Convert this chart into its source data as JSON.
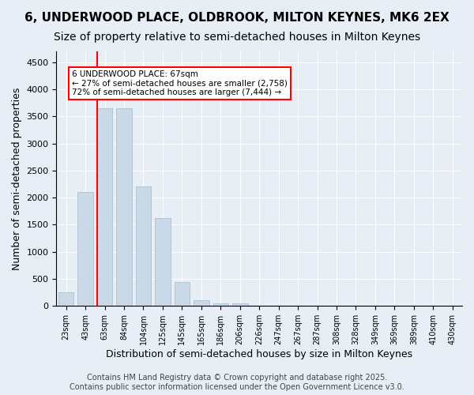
{
  "title1": "6, UNDERWOOD PLACE, OLDBROOK, MILTON KEYNES, MK6 2EX",
  "title2": "Size of property relative to semi-detached houses in Milton Keynes",
  "xlabel": "Distribution of semi-detached houses by size in Milton Keynes",
  "ylabel": "Number of semi-detached properties",
  "bins": [
    "23sqm",
    "43sqm",
    "63sqm",
    "84sqm",
    "104sqm",
    "125sqm",
    "145sqm",
    "165sqm",
    "186sqm",
    "206sqm",
    "226sqm",
    "247sqm",
    "267sqm",
    "287sqm",
    "308sqm",
    "328sqm",
    "349sqm",
    "369sqm",
    "389sqm",
    "410sqm",
    "430sqm"
  ],
  "values": [
    250,
    2100,
    3650,
    3650,
    2200,
    1620,
    440,
    100,
    50,
    50,
    0,
    0,
    0,
    0,
    0,
    0,
    0,
    0,
    0,
    0,
    0
  ],
  "bar_color": "#c9d9e8",
  "bar_edge_color": "#a0b8cc",
  "property_line_bin_index": 2,
  "property_sqm": 67,
  "annotation_line1": "6 UNDERWOOD PLACE: 67sqm",
  "annotation_line2": "← 27% of semi-detached houses are smaller (2,758)",
  "annotation_line3": "72% of semi-detached houses are larger (7,444) →",
  "annotation_box_color": "#ffffff",
  "annotation_box_edgecolor": "red",
  "property_line_color": "red",
  "ylim": [
    0,
    4700
  ],
  "yticks": [
    0,
    500,
    1000,
    1500,
    2000,
    2500,
    3000,
    3500,
    4000,
    4500
  ],
  "background_color": "#e8eef5",
  "footer_text": "Contains HM Land Registry data © Crown copyright and database right 2025.\nContains public sector information licensed under the Open Government Licence v3.0.",
  "grid_color": "#ffffff",
  "title1_fontsize": 11,
  "title2_fontsize": 10,
  "xlabel_fontsize": 9,
  "ylabel_fontsize": 9,
  "footer_fontsize": 7
}
